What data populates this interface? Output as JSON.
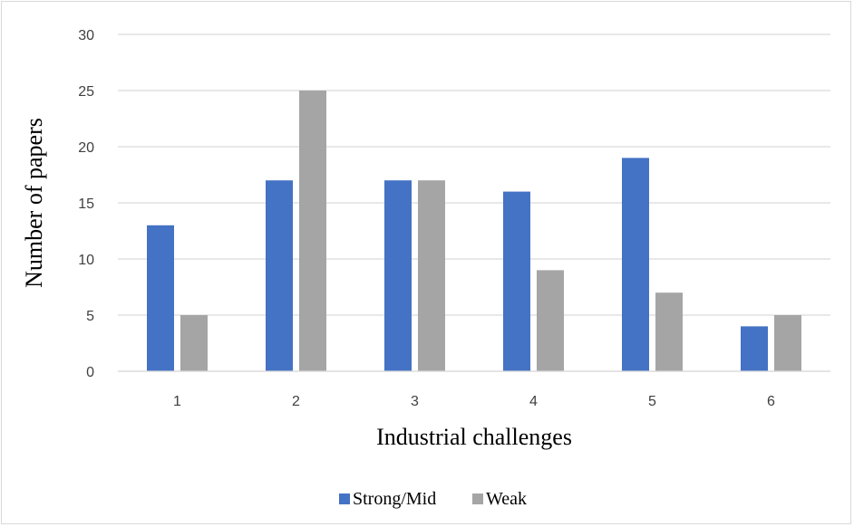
{
  "chart_data": {
    "type": "bar",
    "categories": [
      "1",
      "2",
      "3",
      "4",
      "5",
      "6"
    ],
    "series": [
      {
        "name": "Strong/Mid",
        "values": [
          13,
          17,
          17,
          16,
          19,
          4
        ],
        "color": "#4472c4"
      },
      {
        "name": "Weak",
        "values": [
          5,
          25,
          17,
          9,
          7,
          5
        ],
        "color": "#a5a5a5"
      }
    ],
    "title": "",
    "xlabel": "Industrial challenges",
    "ylabel": "Number of papers",
    "ylim": [
      0,
      30
    ],
    "yticks": [
      0,
      5,
      10,
      15,
      20,
      25,
      30
    ],
    "grid": true,
    "legend": "bottom"
  },
  "colors": {
    "gridline": "#d9d9d9",
    "axis_line": "#d9d9d9",
    "tick_text": "#404040"
  }
}
